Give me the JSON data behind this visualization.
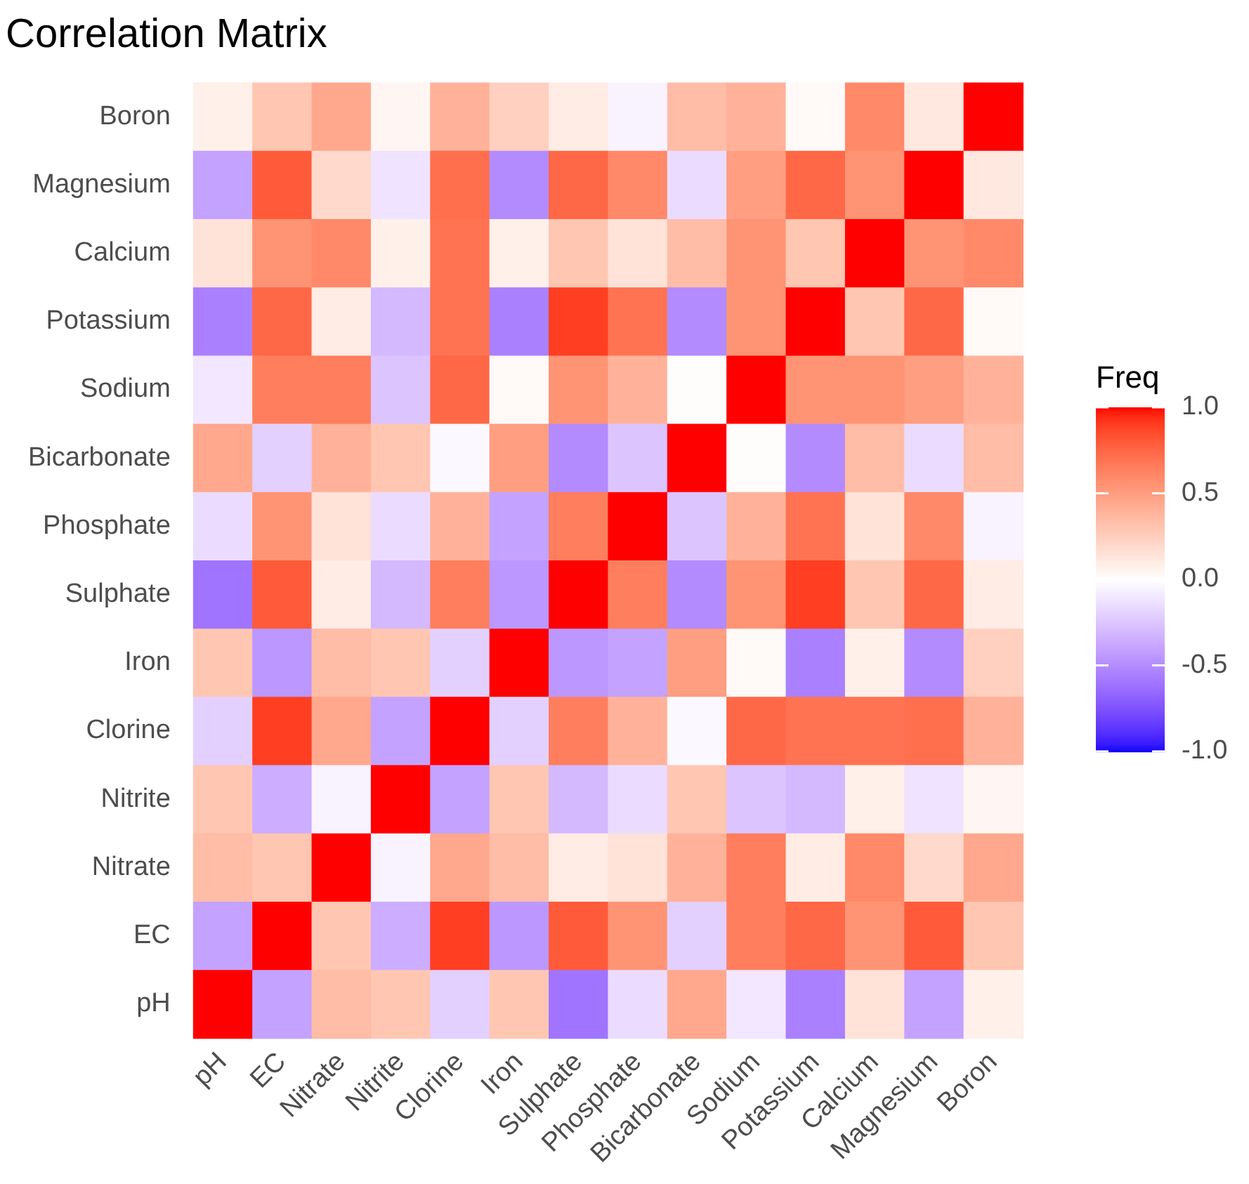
{
  "chart_data": {
    "type": "heatmap",
    "title": "Correlation Matrix",
    "legend_title": "Freq",
    "categories": [
      "pH",
      "EC",
      "Nitrate",
      "Nitrite",
      "Clorine",
      "Iron",
      "Sulphate",
      "Phosphate",
      "Bicarbonate",
      "Sodium",
      "Potassium",
      "Calcium",
      "Magnesium",
      "Boron"
    ],
    "y_categories": [
      "Boron",
      "Magnesium",
      "Calcium",
      "Potassium",
      "Sodium",
      "Bicarbonate",
      "Phosphate",
      "Sulphate",
      "Iron",
      "Clorine",
      "Nitrite",
      "Nitrate",
      "EC",
      "pH"
    ],
    "cells": [
      [
        0.08,
        0.3,
        0.45,
        0.05,
        0.4,
        0.25,
        0.1,
        -0.05,
        0.35,
        0.4,
        0.03,
        0.6,
        0.12,
        1
      ],
      [
        -0.4,
        0.8,
        0.2,
        -0.12,
        0.72,
        -0.5,
        0.75,
        0.6,
        -0.15,
        0.5,
        0.75,
        0.55,
        1,
        0.12
      ],
      [
        0.15,
        0.55,
        0.6,
        0.08,
        0.7,
        0.08,
        0.3,
        0.15,
        0.35,
        0.55,
        0.3,
        1,
        0.55,
        0.6
      ],
      [
        -0.55,
        0.75,
        0.1,
        -0.3,
        0.7,
        -0.55,
        0.9,
        0.7,
        -0.5,
        0.55,
        1,
        0.3,
        0.75,
        0.03
      ],
      [
        -0.1,
        0.65,
        0.65,
        -0.25,
        0.75,
        0.03,
        0.55,
        0.4,
        0.01,
        1,
        0.55,
        0.55,
        0.5,
        0.4
      ],
      [
        0.45,
        -0.2,
        0.4,
        0.3,
        -0.03,
        0.5,
        -0.5,
        -0.25,
        1,
        0.01,
        -0.5,
        0.35,
        -0.15,
        0.35
      ],
      [
        -0.15,
        0.55,
        0.15,
        -0.15,
        0.4,
        -0.4,
        0.65,
        1,
        -0.25,
        0.4,
        0.7,
        0.15,
        0.6,
        -0.05
      ],
      [
        -0.6,
        0.8,
        0.1,
        -0.3,
        0.65,
        -0.45,
        1,
        0.65,
        -0.5,
        0.55,
        0.9,
        0.3,
        0.75,
        0.1
      ],
      [
        0.3,
        -0.45,
        0.35,
        0.3,
        -0.2,
        1,
        -0.45,
        -0.4,
        0.5,
        0.03,
        -0.55,
        0.08,
        -0.5,
        0.25
      ],
      [
        -0.2,
        0.9,
        0.45,
        -0.4,
        1,
        -0.2,
        0.65,
        0.4,
        -0.03,
        0.75,
        0.7,
        0.7,
        0.72,
        0.4
      ],
      [
        0.3,
        -0.35,
        -0.05,
        1,
        -0.4,
        0.3,
        -0.3,
        -0.15,
        0.3,
        -0.25,
        -0.3,
        0.08,
        -0.12,
        0.05
      ],
      [
        0.35,
        0.3,
        1,
        -0.05,
        0.45,
        0.35,
        0.1,
        0.15,
        0.4,
        0.65,
        0.1,
        0.6,
        0.2,
        0.45
      ],
      [
        -0.4,
        1,
        0.3,
        -0.35,
        0.9,
        -0.45,
        0.8,
        0.55,
        -0.2,
        0.65,
        0.75,
        0.55,
        0.8,
        0.3
      ],
      [
        1,
        -0.4,
        0.35,
        0.3,
        -0.2,
        0.3,
        -0.6,
        -0.15,
        0.45,
        -0.1,
        -0.55,
        0.15,
        -0.4,
        0.08
      ]
    ],
    "clim": [
      -1,
      1
    ],
    "cticks": [
      {
        "value": 1,
        "label": "1.0"
      },
      {
        "value": 0.5,
        "label": "0.5"
      },
      {
        "value": 0,
        "label": "0.0"
      },
      {
        "value": -0.5,
        "label": "-0.5"
      },
      {
        "value": -1,
        "label": "-1.0"
      }
    ]
  }
}
